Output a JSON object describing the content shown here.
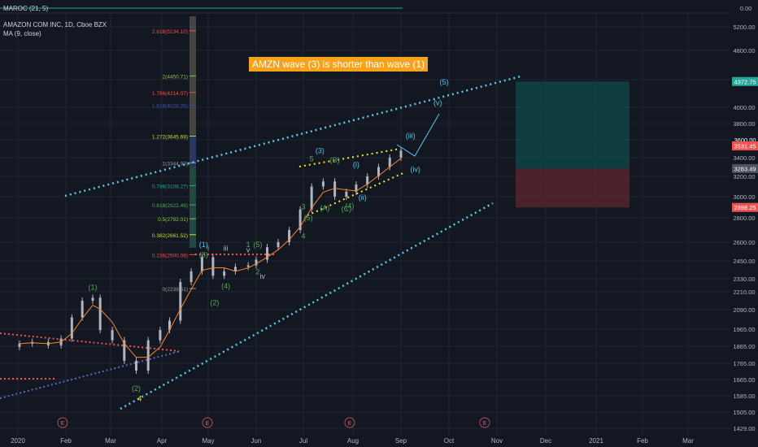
{
  "header": {
    "roc_label": "MAROC (21, 5)",
    "symbol_label": "AMAZON COM INC, 1D, Cboe BZX",
    "ma_label": "MA (9, close)",
    "roc_value": "0.00"
  },
  "annotation": "AMZN wave (3) is shorter than wave (1)",
  "colors": {
    "background": "#131722",
    "grid": "#1f2430",
    "candle": "#b2b5be",
    "ma": "#f7862b",
    "channel": "#5bc8e8",
    "wave_green": "#4caf50",
    "wave_cyan": "#5bc8e8",
    "wedge": "#f5e82a",
    "profit_zone": "#0f4a4a",
    "loss_zone": "#5a2530",
    "annotation": "#f7a21b"
  },
  "chart_data": {
    "type": "candlestick",
    "title": "AMAZON COM INC, 1D, Cboe BZX",
    "x_ticks": [
      "2020",
      "Feb",
      "Mar",
      "Apr",
      "May",
      "Jun",
      "Jul",
      "Aug",
      "Sep",
      "Oct",
      "Nov",
      "Dec",
      "2021",
      "Feb",
      "Mar"
    ],
    "y_ticks": [
      5200,
      4800,
      4400,
      4000,
      3800,
      3600,
      3400,
      3200,
      3000,
      2800,
      2600,
      2450,
      2330,
      2210,
      2090,
      1965,
      1865,
      1765,
      1665,
      1585,
      1505,
      1429
    ],
    "y_tick_labels": [
      "5200.00",
      "4800.00",
      "4400.00",
      "4000.00",
      "3800.00",
      "3600.00",
      "3400.00",
      "3200.00",
      "3000.00",
      "2800.00",
      "2600.00",
      "2450.00",
      "2330.00",
      "2210.00",
      "2090.00",
      "1965.00",
      "1865.00",
      "1765.00",
      "1665.00",
      "1585.00",
      "1505.00",
      "1429.00"
    ],
    "price_series": {
      "dates": [
        "2020-01-02",
        "2020-01-10",
        "2020-01-20",
        "2020-01-28",
        "2020-02-05",
        "2020-02-12",
        "2020-02-19",
        "2020-02-24",
        "2020-03-02",
        "2020-03-09",
        "2020-03-16",
        "2020-03-23",
        "2020-03-30",
        "2020-04-06",
        "2020-04-13",
        "2020-04-20",
        "2020-04-27",
        "2020-05-04",
        "2020-05-11",
        "2020-05-18",
        "2020-05-26",
        "2020-06-01",
        "2020-06-08",
        "2020-06-15",
        "2020-06-22",
        "2020-06-29",
        "2020-07-06",
        "2020-07-13",
        "2020-07-20",
        "2020-07-27",
        "2020-08-03",
        "2020-08-10",
        "2020-08-17",
        "2020-08-24",
        "2020-08-31"
      ],
      "close": [
        1880,
        1890,
        1870,
        1910,
        2040,
        2150,
        2170,
        1960,
        1900,
        1780,
        1720,
        1900,
        1960,
        2020,
        2300,
        2380,
        2480,
        2350,
        2380,
        2410,
        2420,
        2460,
        2560,
        2600,
        2700,
        2880,
        3100,
        3150,
        3000,
        3050,
        3120,
        3200,
        3300,
        3400,
        3480
      ]
    },
    "ma_period": 9,
    "fib_levels": [
      {
        "ratio": "2.618",
        "price": 5134.1
      },
      {
        "ratio": "2",
        "price": 4450.71
      },
      {
        "ratio": "1.786",
        "price": 4214.07
      },
      {
        "ratio": "1.618",
        "price": 4028.26
      },
      {
        "ratio": "1.272",
        "price": 3645.69
      },
      {
        "ratio": "1",
        "price": 3344.93
      },
      {
        "ratio": "0.786",
        "price": 3108.27
      },
      {
        "ratio": "0.618",
        "price": 2922.49
      },
      {
        "ratio": "0.5",
        "price": 2792.01
      },
      {
        "ratio": "0.382",
        "price": 2661.52
      },
      {
        "ratio": "0.236",
        "price": 2500.08
      },
      {
        "ratio": "0",
        "price": 2239.51
      }
    ],
    "fib_labels": [
      "2.618(5134.10)",
      "2(4450.71)",
      "1.786(4214.07)",
      "1.618(4028.26)",
      "1.272(3645.69)",
      "1(3344.93)",
      "0.786(3108.27)",
      "0.618(2922.49)",
      "0.5(2792.01)",
      "0.382(2661.52)",
      "0.236(2500.08)",
      "0(2239.51)"
    ],
    "wave_labels": [
      {
        "text": "(1)",
        "date": "2020-02-19",
        "price": 2230,
        "color": "green"
      },
      {
        "text": "(2)",
        "date": "2020-03-16",
        "price": 1610,
        "color": "green"
      },
      {
        "text": "4",
        "date": "2020-03-18",
        "price": 1560,
        "color": "yellow"
      },
      {
        "text": "(1)",
        "date": "2020-04-28",
        "price": 2560,
        "color": "cyan"
      },
      {
        "text": "(3)",
        "date": "2020-04-28",
        "price": 2480,
        "color": "green"
      },
      {
        "text": "i",
        "date": "2020-05-01",
        "price": 2530,
        "color": "white"
      },
      {
        "text": "iii",
        "date": "2020-05-12",
        "price": 2530,
        "color": "white"
      },
      {
        "text": "(2)",
        "date": "2020-05-05",
        "price": 2120,
        "color": "green"
      },
      {
        "text": "(4)",
        "date": "2020-05-12",
        "price": 2240,
        "color": "green"
      },
      {
        "text": "1",
        "date": "2020-05-26",
        "price": 2560,
        "color": "green"
      },
      {
        "text": "v",
        "date": "2020-05-26",
        "price": 2520,
        "color": "white"
      },
      {
        "text": "(5)",
        "date": "2020-06-02",
        "price": 2560,
        "color": "green"
      },
      {
        "text": "2",
        "date": "2020-06-02",
        "price": 2360,
        "color": "green"
      },
      {
        "text": "iv",
        "date": "2020-06-05",
        "price": 2330,
        "color": "white"
      },
      {
        "text": "3",
        "date": "2020-07-01",
        "price": 2880,
        "color": "green"
      },
      {
        "text": "4",
        "date": "2020-07-01",
        "price": 2630,
        "color": "green"
      },
      {
        "text": "5",
        "date": "2020-07-06",
        "price": 3360,
        "color": "green"
      },
      {
        "text": "(3)",
        "date": "2020-07-11",
        "price": 3450,
        "color": "cyan"
      },
      {
        "text": "(5)",
        "date": "2020-07-04",
        "price": 2780,
        "color": "green"
      },
      {
        "text": "(B)",
        "date": "2020-07-20",
        "price": 3350,
        "color": "green"
      },
      {
        "text": "(A)",
        "date": "2020-07-14",
        "price": 2870,
        "color": "green"
      },
      {
        "text": "(4)",
        "date": "2020-07-29",
        "price": 2890,
        "color": "green"
      },
      {
        "text": "(C)",
        "date": "2020-07-27",
        "price": 2860,
        "color": "green"
      },
      {
        "text": "(i)",
        "date": "2020-08-03",
        "price": 3300,
        "color": "cyan"
      },
      {
        "text": "(ii)",
        "date": "2020-08-07",
        "price": 2970,
        "color": "cyan"
      },
      {
        "text": "(iii)",
        "date": "2020-09-07",
        "price": 3620,
        "color": "cyan"
      },
      {
        "text": "(iv)",
        "date": "2020-09-10",
        "price": 3250,
        "color": "cyan"
      },
      {
        "text": "(v)",
        "date": "2020-09-24",
        "price": 4030,
        "color": "cyan"
      },
      {
        "text": "(5)",
        "date": "2020-09-28",
        "price": 4330,
        "color": "cyan"
      }
    ],
    "earnings_markers": [
      "E",
      "E",
      "E",
      "E"
    ],
    "price_tags": [
      {
        "label": "4372.75",
        "price": 4372.75,
        "color": "#26a69a"
      },
      {
        "label": "3600.00",
        "price": 3600,
        "color": "#131722"
      },
      {
        "label": "3531.45",
        "price": 3531.45,
        "color": "#ef5350"
      },
      {
        "label": "3283.49",
        "price": 3283.49,
        "color": "#4c525e"
      },
      {
        "label": "2898.25",
        "price": 2898.25,
        "color": "#ef5350"
      }
    ],
    "position": {
      "target": 4372.75,
      "entry": 3283.49,
      "stop": 2898.25
    },
    "grid": true
  }
}
